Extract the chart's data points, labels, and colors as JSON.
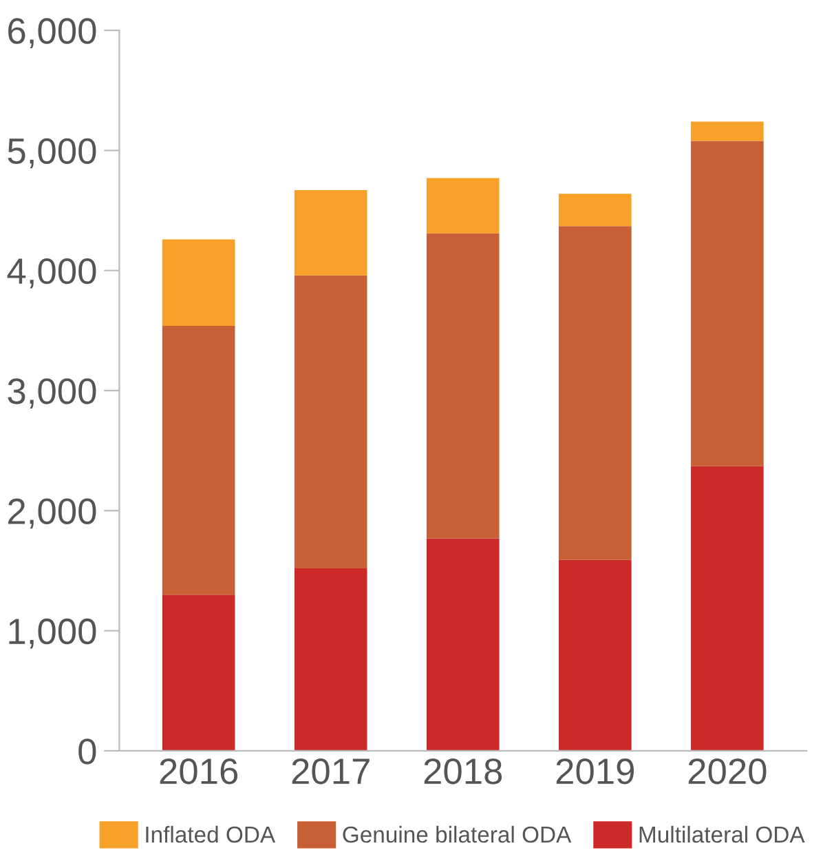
{
  "chart_data": {
    "type": "bar",
    "stacked": true,
    "categories": [
      "2016",
      "2017",
      "2018",
      "2019",
      "2020"
    ],
    "series": [
      {
        "name": "Multilateral ODA",
        "color": "#cc2929",
        "values": [
          1300,
          1520,
          1770,
          1590,
          2370
        ]
      },
      {
        "name": "Genuine bilateral ODA",
        "color": "#c86035",
        "values": [
          2240,
          2440,
          2540,
          2780,
          2710
        ]
      },
      {
        "name": "Inflated ODA",
        "color": "#f7a12a",
        "values": [
          720,
          710,
          460,
          270,
          160
        ]
      }
    ],
    "ylim": [
      0,
      6000
    ],
    "yticks": [
      {
        "value": 0,
        "label": "0"
      },
      {
        "value": 1000,
        "label": "1,000"
      },
      {
        "value": 2000,
        "label": "2,000"
      },
      {
        "value": 3000,
        "label": "3,000"
      },
      {
        "value": 4000,
        "label": "4,000"
      },
      {
        "value": 5000,
        "label": "5,000"
      },
      {
        "value": 6000,
        "label": "6,000"
      }
    ],
    "grid": false,
    "legend": "bottom"
  }
}
